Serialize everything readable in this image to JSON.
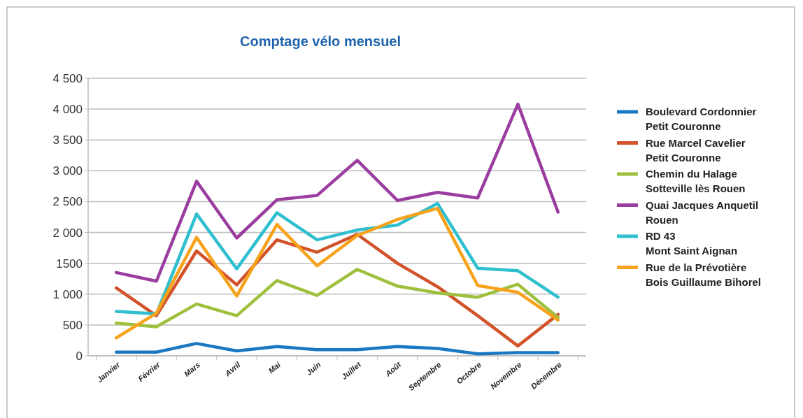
{
  "chart_data": {
    "type": "line",
    "title": "Comptage vélo mensuel",
    "categories": [
      "Janvier",
      "Février",
      "Mars",
      "Avril",
      "Mai",
      "Juin",
      "Juillet",
      "Août",
      "Septembre",
      "Octobre",
      "Novembre",
      "Décembre"
    ],
    "series": [
      {
        "name": "Boulevard Cordonnier\nPetit Couronne",
        "color": "#1a78c2",
        "values": [
          60,
          60,
          200,
          80,
          150,
          100,
          100,
          150,
          120,
          30,
          50,
          50
        ]
      },
      {
        "name": "Rue Marcel Cavelier\nPetit Couronne",
        "color": "#d2522a",
        "values": [
          1100,
          650,
          1700,
          1150,
          1880,
          1680,
          1970,
          1500,
          1120,
          650,
          160,
          670
        ]
      },
      {
        "name": "Chemin du Halage\nSotteville lès Rouen",
        "color": "#9fc03c",
        "values": [
          530,
          470,
          840,
          650,
          1220,
          980,
          1400,
          1130,
          1020,
          950,
          1160,
          620
        ]
      },
      {
        "name": "Quai Jacques Anquetil\nRouen",
        "color": "#9b3da0",
        "values": [
          1350,
          1210,
          2830,
          1910,
          2530,
          2600,
          3170,
          2520,
          2650,
          2560,
          4080,
          2330
        ]
      },
      {
        "name": "RD 43\nMont Saint Aignan",
        "color": "#2fbfcf",
        "values": [
          720,
          680,
          2300,
          1410,
          2320,
          1880,
          2040,
          2120,
          2470,
          1420,
          1380,
          950
        ]
      },
      {
        "name": "Rue de la Prévotière\nBois Guillaume Bihorel",
        "color": "#f7a21b",
        "values": [
          290,
          690,
          1920,
          970,
          2130,
          1460,
          1950,
          2210,
          2390,
          1140,
          1030,
          580
        ]
      }
    ],
    "ylim": [
      0,
      4500
    ],
    "yticks": [
      0,
      500,
      {
        "value": 1000,
        "label": "1 000"
      },
      1500,
      {
        "value": 2000,
        "label": "2 000"
      },
      {
        "value": 2500,
        "label": "2 500"
      },
      {
        "value": 3000,
        "label": "3 000"
      },
      {
        "value": 3500,
        "label": "3 500"
      },
      {
        "value": 4000,
        "label": "4 000"
      },
      {
        "value": 4500,
        "label": "4 500"
      }
    ],
    "grid": "y",
    "legend": "right",
    "marker": "none",
    "line_style": "solid"
  }
}
